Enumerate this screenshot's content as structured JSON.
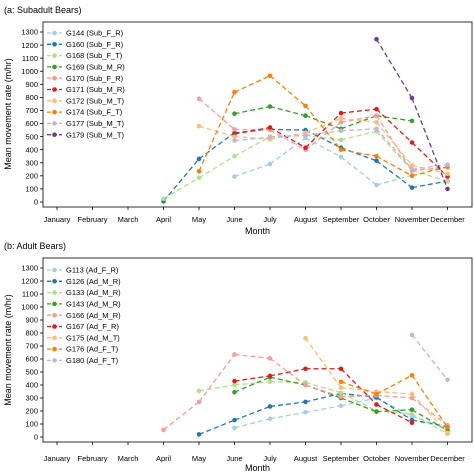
{
  "chart_data": [
    {
      "type": "line",
      "title": "(a: Subadult Bears)",
      "xlabel": "Month",
      "ylabel": "Mean movement rate (m/hr)",
      "categories": [
        "January",
        "February",
        "March",
        "April",
        "May",
        "June",
        "July",
        "August",
        "September",
        "October",
        "November",
        "December"
      ],
      "yticks": [
        0,
        100,
        200,
        300,
        400,
        500,
        600,
        700,
        800,
        900,
        1000,
        1100,
        1200,
        1300
      ],
      "ylim": [
        0,
        1300
      ],
      "grid": false,
      "legend_position": "top-left",
      "series": [
        {
          "name": "G144 (Sub_F_R)",
          "color": "#a6cee3",
          "values": [
            null,
            null,
            null,
            null,
            null,
            195,
            290,
            490,
            345,
            130,
            205,
            null
          ]
        },
        {
          "name": "G160 (Sub_F_R)",
          "color": "#1f78b4",
          "values": [
            null,
            null,
            null,
            5,
            330,
            530,
            555,
            550,
            415,
            315,
            110,
            160
          ]
        },
        {
          "name": "G168 (Sub_F_T)",
          "color": "#b2df8a",
          "values": [
            null,
            null,
            null,
            25,
            185,
            350,
            500,
            510,
            475,
            540,
            240,
            160
          ]
        },
        {
          "name": "G169 (Sub_M_R)",
          "color": "#33a02c",
          "values": [
            null,
            null,
            null,
            null,
            null,
            675,
            730,
            660,
            560,
            660,
            620,
            null
          ]
        },
        {
          "name": "G170 (Sub_F_R)",
          "color": "#fb9a99",
          "values": [
            null,
            null,
            null,
            null,
            790,
            555,
            550,
            400,
            610,
            660,
            240,
            265
          ]
        },
        {
          "name": "G171 (Sub_M_R)",
          "color": "#e31a1c",
          "values": [
            null,
            null,
            null,
            null,
            null,
            520,
            570,
            415,
            680,
            710,
            455,
            195
          ]
        },
        {
          "name": "G172 (Sub_M_T)",
          "color": "#fdbf6f",
          "values": [
            null,
            null,
            null,
            null,
            580,
            500,
            480,
            530,
            640,
            610,
            280,
            215
          ]
        },
        {
          "name": "G174 (Sub_F_T)",
          "color": "#ff7f00",
          "values": [
            null,
            null,
            null,
            null,
            235,
            840,
            965,
            735,
            400,
            350,
            200,
            270
          ]
        },
        {
          "name": "G177 (Sub_M_T)",
          "color": "#cab2d6",
          "values": [
            null,
            null,
            null,
            null,
            null,
            470,
            495,
            510,
            545,
            560,
            250,
            285
          ]
        },
        {
          "name": "G179 (Sub_M_T)",
          "color": "#6a3d9a",
          "values": [
            null,
            null,
            null,
            null,
            null,
            null,
            null,
            null,
            null,
            1245,
            795,
            100
          ]
        }
      ]
    },
    {
      "type": "line",
      "title": "(b: Adult Bears)",
      "xlabel": "Month",
      "ylabel": "Mean movement rate (m/hr)",
      "categories": [
        "January",
        "February",
        "March",
        "April",
        "May",
        "June",
        "July",
        "August",
        "September",
        "October",
        "November",
        "December"
      ],
      "yticks": [
        0,
        100,
        200,
        300,
        400,
        500,
        600,
        700,
        800,
        900,
        1000,
        1100,
        1200,
        1300
      ],
      "ylim": [
        0,
        1300
      ],
      "grid": false,
      "legend_position": "top-left",
      "series": [
        {
          "name": "G113 (Ad_F_R)",
          "color": "#a6cee3",
          "values": [
            null,
            null,
            null,
            null,
            null,
            70,
            140,
            190,
            240,
            300,
            160,
            65
          ]
        },
        {
          "name": "G126 (Ad_M_R)",
          "color": "#1f78b4",
          "values": [
            null,
            null,
            null,
            null,
            20,
            130,
            235,
            270,
            335,
            305,
            130,
            80
          ]
        },
        {
          "name": "G133 (Ad_M_R)",
          "color": "#b2df8a",
          "values": [
            null,
            null,
            null,
            null,
            355,
            400,
            425,
            420,
            340,
            200,
            175,
            25
          ]
        },
        {
          "name": "G143 (Ad_M_R)",
          "color": "#33a02c",
          "values": [
            null,
            null,
            null,
            null,
            null,
            345,
            460,
            400,
            300,
            195,
            210,
            50
          ]
        },
        {
          "name": "G166 (Ad_M_R)",
          "color": "#fb9a99",
          "values": [
            null,
            null,
            null,
            55,
            270,
            635,
            605,
            400,
            310,
            320,
            300,
            90
          ]
        },
        {
          "name": "G167 (Ad_F_R)",
          "color": "#e31a1c",
          "values": [
            null,
            null,
            null,
            null,
            null,
            430,
            470,
            525,
            525,
            250,
            110,
            null
          ]
        },
        {
          "name": "G175 (Ad_M_T)",
          "color": "#fdbf6f",
          "values": [
            null,
            null,
            null,
            null,
            null,
            null,
            null,
            760,
            380,
            350,
            330,
            30
          ]
        },
        {
          "name": "G176 (Ad_F_T)",
          "color": "#ff7f00",
          "values": [
            null,
            null,
            null,
            null,
            null,
            null,
            null,
            null,
            425,
            330,
            475,
            75
          ]
        },
        {
          "name": "G180 (Ad_F_T)",
          "color": "#cab2d6",
          "values": [
            null,
            null,
            null,
            null,
            null,
            null,
            null,
            null,
            null,
            null,
            785,
            440
          ]
        }
      ]
    }
  ]
}
